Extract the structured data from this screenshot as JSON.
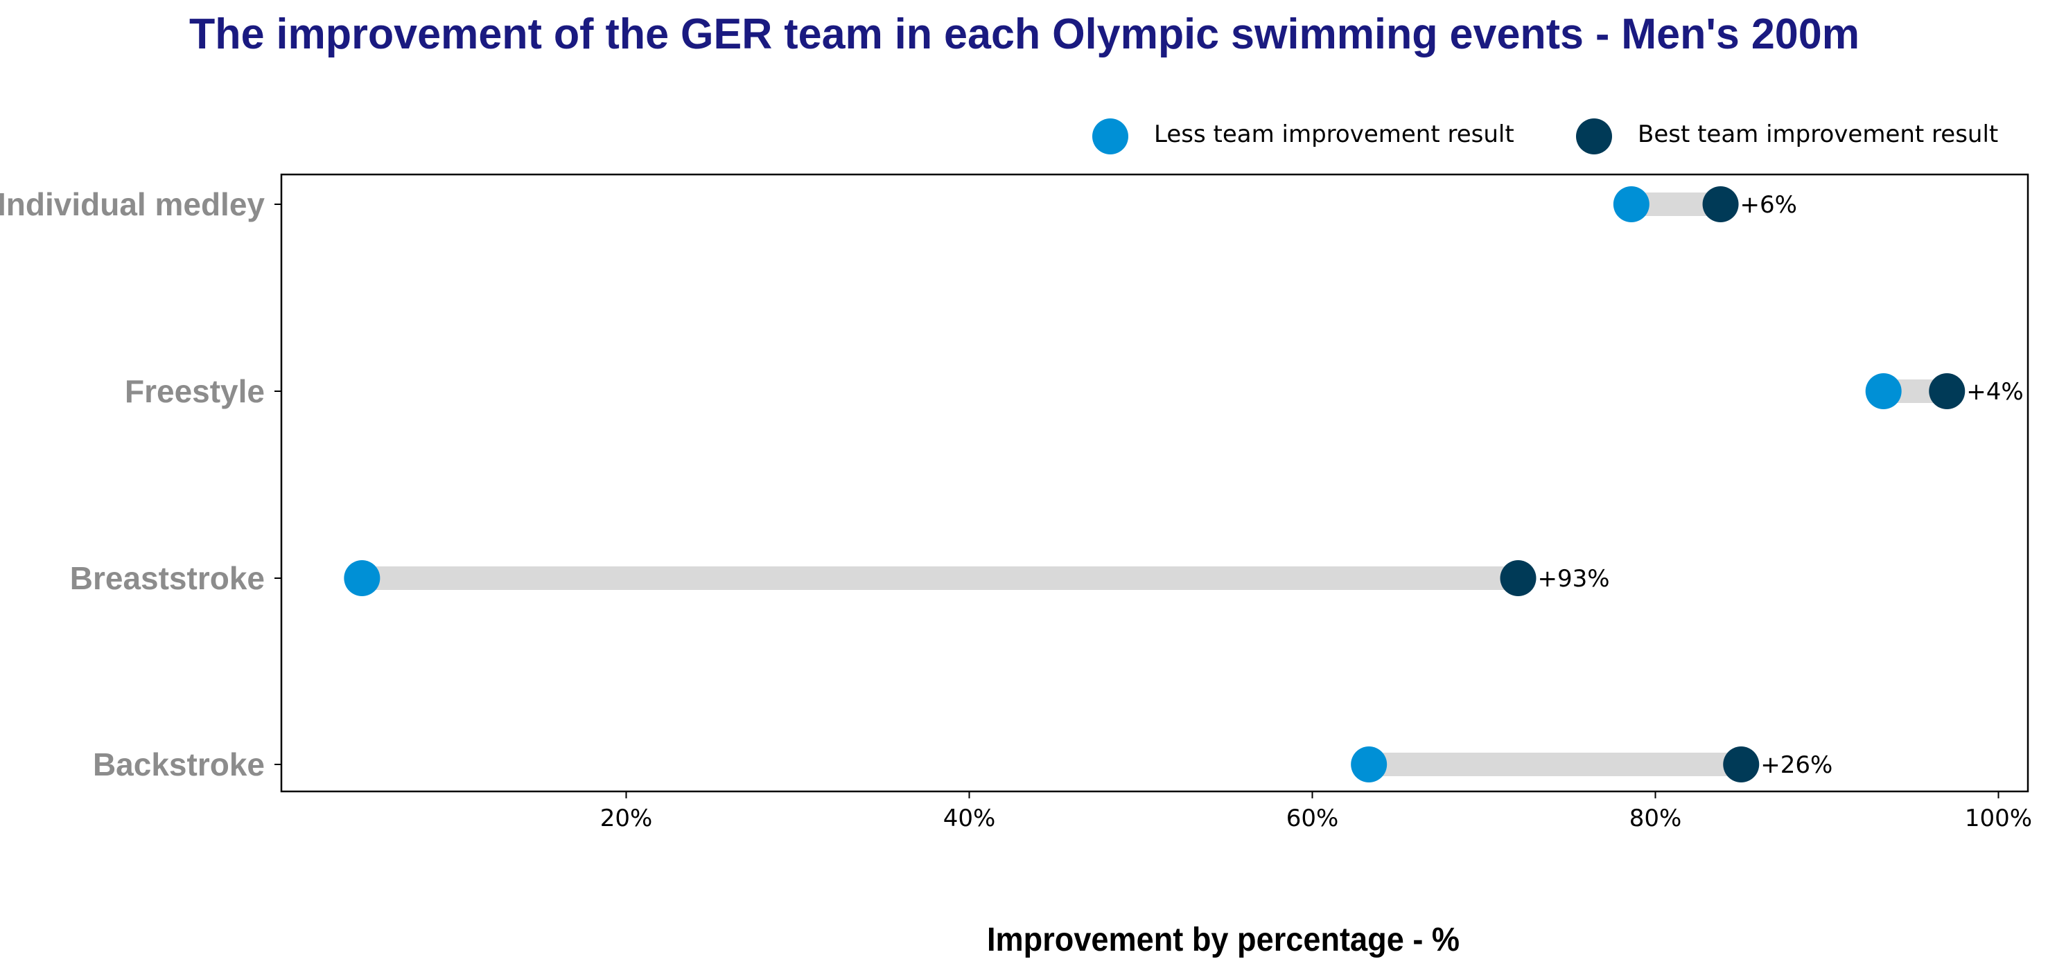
{
  "chart_data": {
    "type": "dumbbell",
    "title": "The improvement of the GER team in each Olympic swimming events - Men's 200m",
    "xlabel": "Improvement by percentage - %",
    "ylabel": "",
    "xlim": [
      0,
      100
    ],
    "xticks": [
      20,
      40,
      60,
      80,
      100
    ],
    "xtick_labels": [
      "20%",
      "40%",
      "60%",
      "80%",
      "100%"
    ],
    "legend_position": "top-right",
    "grid": false,
    "series": [
      {
        "name": "Less team improvement result",
        "color": "#0090d6"
      },
      {
        "name": "Best team improvement result",
        "color": "#003a57"
      }
    ],
    "categories": [
      "Individual medley",
      "Freestyle",
      "Breaststroke",
      "Backstroke"
    ],
    "rows": [
      {
        "category": "Individual medley",
        "low": 78.6,
        "high": 83.8,
        "label": "+6%"
      },
      {
        "category": "Freestyle",
        "low": 93.3,
        "high": 97.0,
        "label": "+4%"
      },
      {
        "category": "Breaststroke",
        "low": 4.6,
        "high": 72.0,
        "label": "+93%"
      },
      {
        "category": "Backstroke",
        "low": 63.3,
        "high": 85.0,
        "label": "+26%"
      }
    ],
    "connector_color": "#d9d9d9",
    "title_color": "#1a1a80",
    "category_label_color": "#8c8c8c"
  }
}
